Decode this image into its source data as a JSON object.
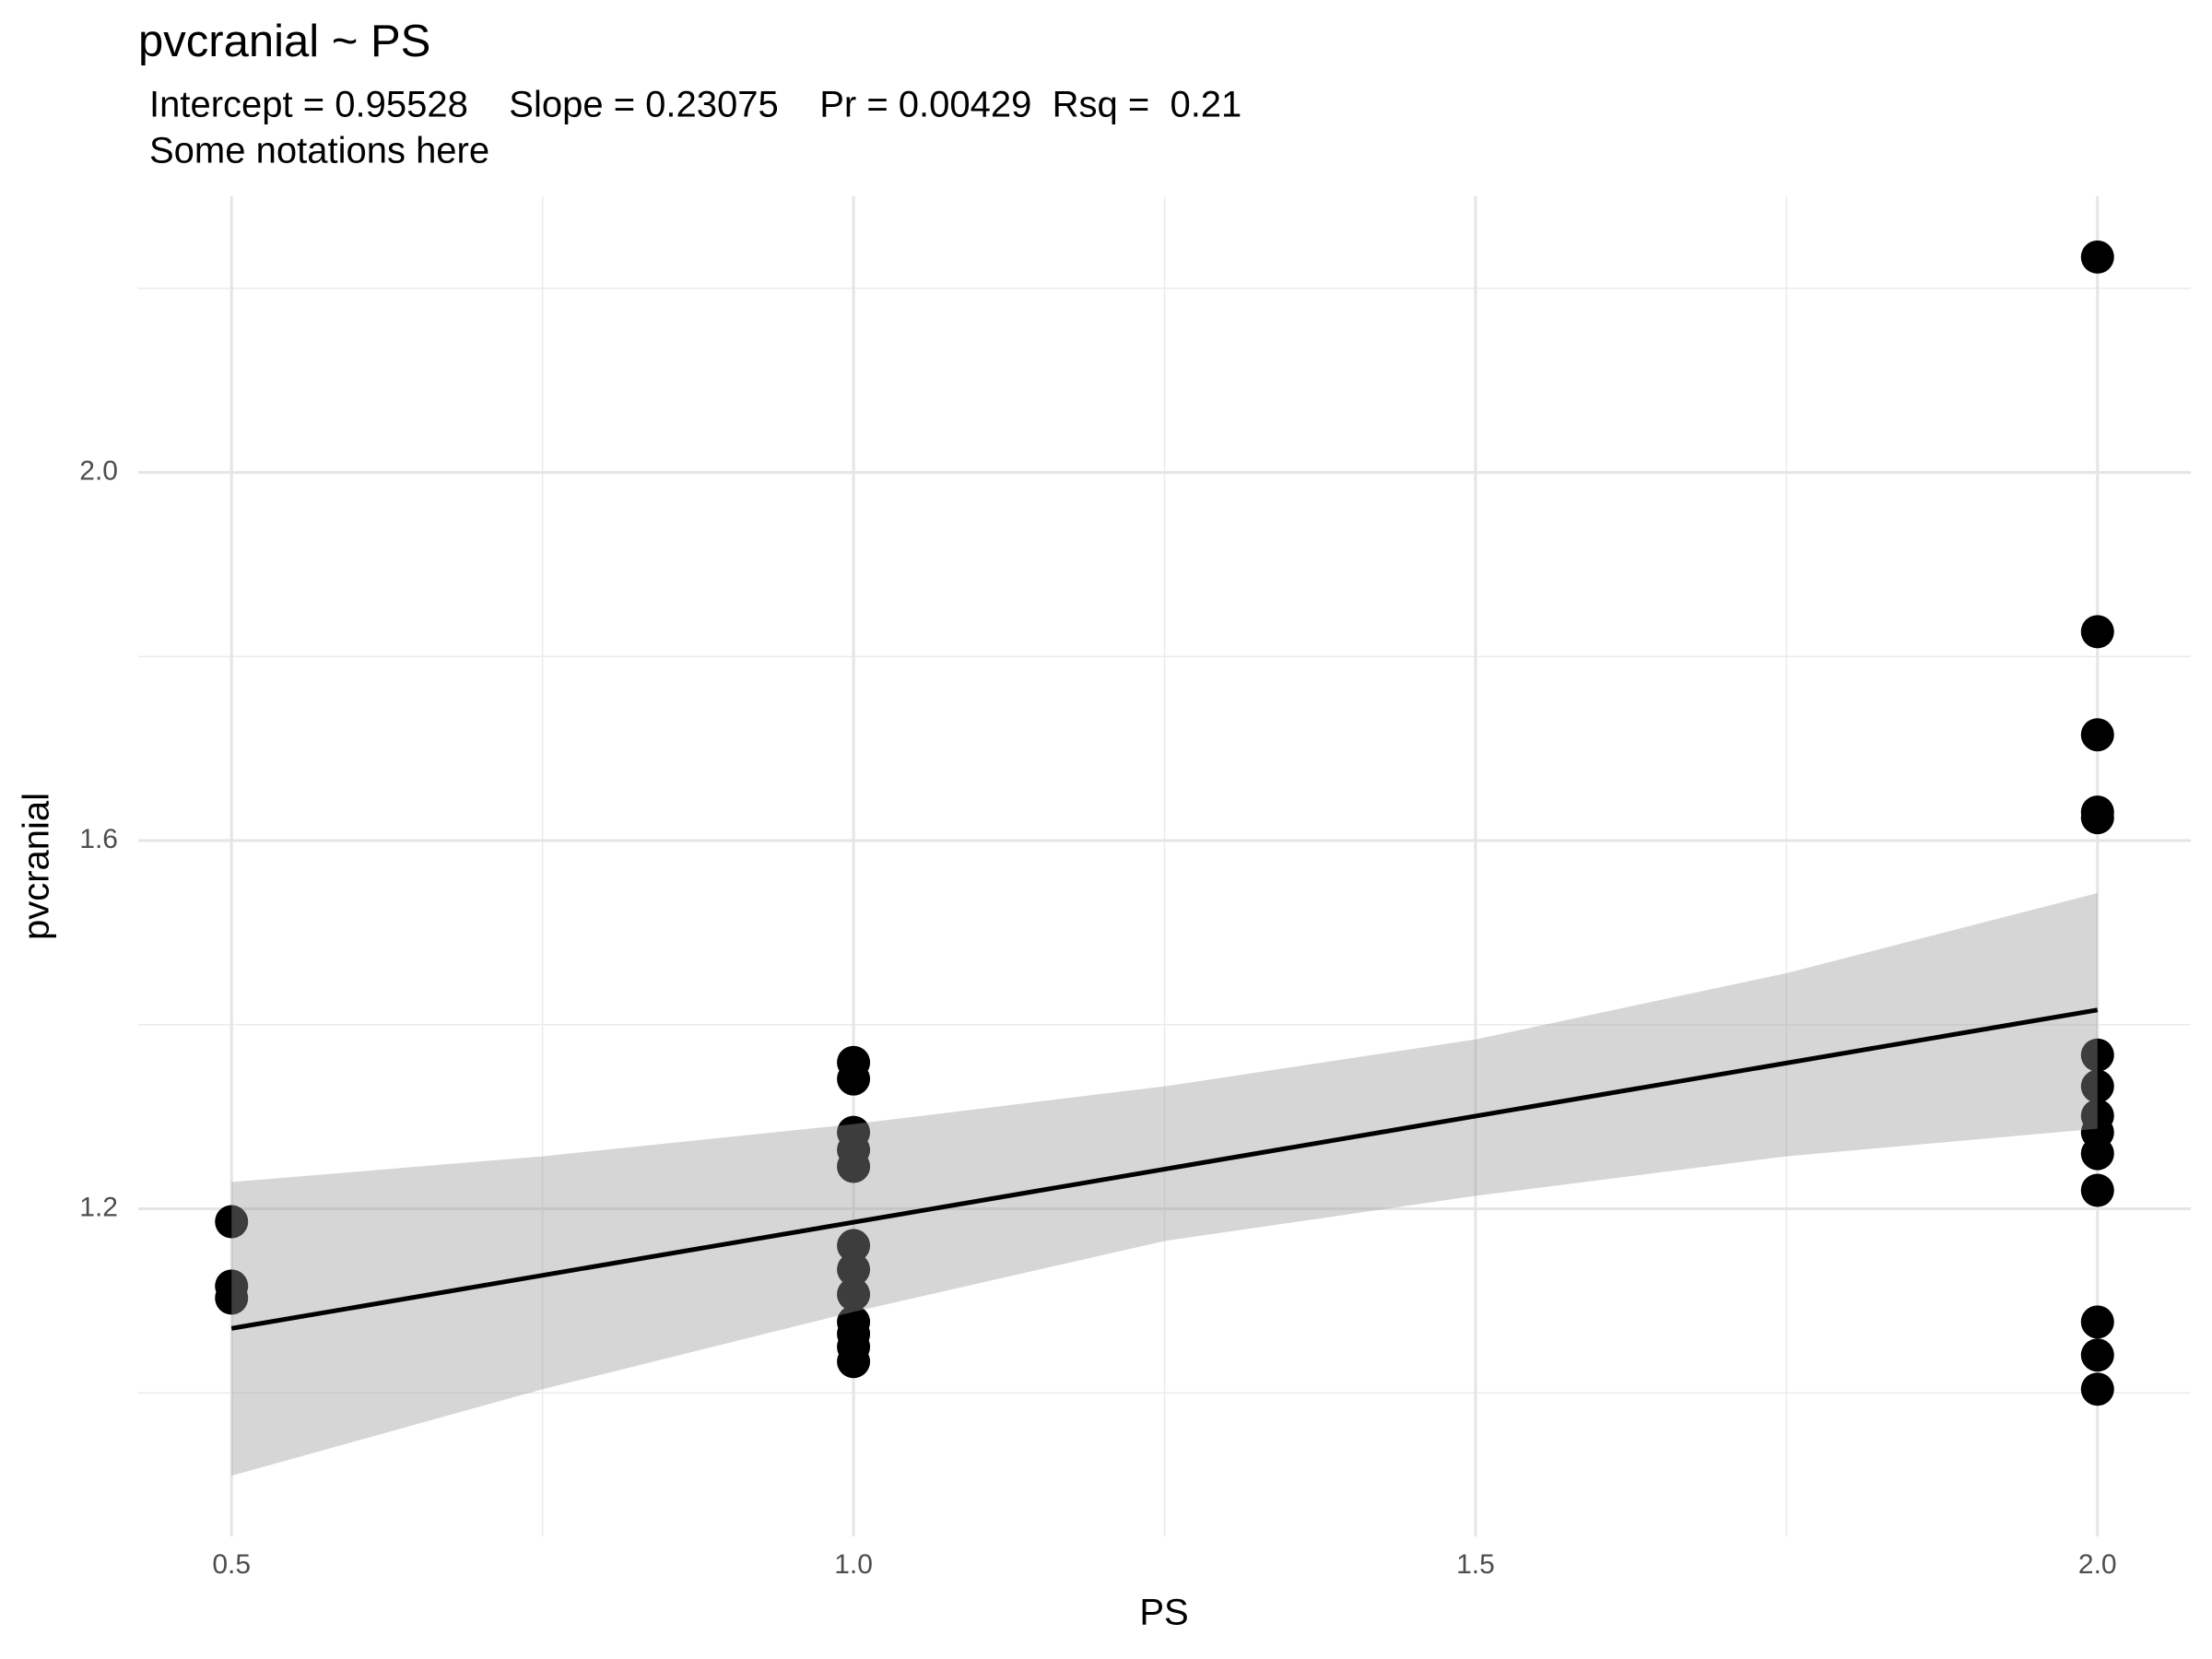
{
  "chart_data": {
    "type": "scatter",
    "title": "pvcranial ~ PS",
    "subtitle": [
      "Intercept = 0.95528    Slope = 0.23075    Pr = 0.00429  Rsq =  0.21",
      "Some notations here"
    ],
    "x_label": "PS",
    "y_label": "pvcranial",
    "xlim": [
      0.425,
      2.075
    ],
    "ylim": [
      0.844,
      2.3
    ],
    "xticks": [
      0.5,
      {
        "value": 1,
        "label": "1.0"
      },
      1.5,
      {
        "value": 2,
        "label": "2.0"
      }
    ],
    "yticks": [
      1.2,
      1.6,
      {
        "value": 2,
        "label": "2.0"
      }
    ],
    "x_minor_ticks": [
      0.75,
      1.25,
      1.75
    ],
    "y_minor_ticks": [
      1.0,
      1.4,
      1.8,
      2.2
    ],
    "grid": true,
    "color": "#000000",
    "x": [
      0.5,
      0.5,
      0.5,
      1,
      1,
      1,
      1,
      1,
      1,
      1,
      1,
      1,
      1,
      1,
      1,
      2,
      2,
      2,
      2,
      2,
      2,
      2,
      2,
      2,
      2,
      2,
      2,
      2,
      2
    ],
    "values": [
      1.186,
      1.116,
      1.103,
      1.359,
      1.341,
      1.283,
      1.264,
      1.246,
      1.16,
      1.134,
      1.107,
      1.077,
      1.064,
      1.05,
      1.034,
      2.234,
      1.827,
      1.715,
      1.631,
      1.625,
      1.367,
      1.333,
      1.301,
      1.283,
      1.26,
      1.22,
      1.077,
      1.041,
      1.004
    ],
    "fit": {
      "x": [
        0.5,
        2
      ],
      "values": [
        1.07,
        1.416
      ],
      "color": "#000000"
    },
    "band": {
      "x": [
        0.5,
        0.75,
        1,
        1.25,
        1.5,
        1.75,
        2
      ],
      "upper": [
        1.229,
        1.257,
        1.292,
        1.333,
        1.384,
        1.456,
        1.543
      ],
      "lower": [
        0.91,
        1.004,
        1.088,
        1.165,
        1.214,
        1.257,
        1.287
      ],
      "color": "#999999"
    }
  }
}
